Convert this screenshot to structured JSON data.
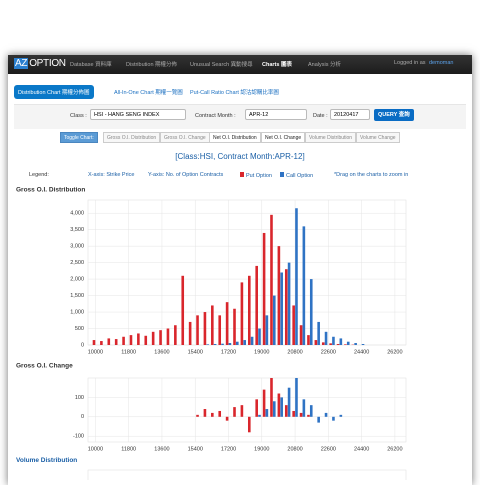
{
  "nav": {
    "brand_prefix": "AZ",
    "brand": "OPTION",
    "items": [
      "Database 資料庫",
      "Distribution 期權分佈",
      "Unusual Search 異動搜尋",
      "Charts 圖表",
      "Analysis 分析"
    ],
    "login": "Logged in as",
    "user": "demoman"
  },
  "tabs": [
    "Distribution Chart 期權分佈圖",
    "All-In-One Chart 期權一覽圖",
    "Put-Call Ratio Chart 認沽認購比率圖"
  ],
  "form": {
    "class_label": "Class :",
    "class_value": "HSI - HANG SENG INDEX",
    "month_label": "Contract Month :",
    "month_value": "APR-12",
    "date_label": "Date :",
    "date_value": "20120417",
    "query": "QUERY 查詢"
  },
  "toggle": {
    "label": "Toggle Chart:",
    "buttons": [
      "Gross O.I. Distribution",
      "Gross O.I. Change",
      "Net O.I. Distribution",
      "Net O.I. Change",
      "Volume Distribution",
      "Volume Change"
    ]
  },
  "heading": "[Class:HSI, Contract Month:APR-12]",
  "legend": {
    "title": "Legend:",
    "x_axis": "X-axis: Strike Price",
    "y_axis": "Y-axis: No. of Option Contracts",
    "note": "*Drag on the charts to zoom in"
  },
  "volume_title": "Volume Distribution",
  "chart_data": [
    {
      "type": "bar",
      "title": "Gross O.I. Distribution",
      "x": [
        10000,
        10400,
        10800,
        11200,
        11600,
        12000,
        12400,
        12800,
        13200,
        13600,
        14000,
        14400,
        14800,
        15200,
        15600,
        16000,
        16400,
        16800,
        17200,
        17600,
        18000,
        18400,
        18800,
        19200,
        19600,
        20000,
        20400,
        20800,
        21200,
        21600,
        22000,
        22400,
        22800,
        23200,
        23600,
        24000,
        24400
      ],
      "series": [
        {
          "name": "Put Option",
          "color": "#d9262c",
          "values": [
            150,
            120,
            200,
            180,
            250,
            300,
            350,
            280,
            400,
            450,
            500,
            600,
            2100,
            700,
            900,
            1000,
            1200,
            900,
            1300,
            1100,
            1900,
            2100,
            2400,
            3400,
            3950,
            3000,
            2300,
            1200,
            600,
            300,
            150,
            80,
            50,
            30,
            20,
            10,
            null
          ]
        },
        {
          "name": "Call Option",
          "color": "#2f73c4",
          "values": [
            null,
            null,
            null,
            null,
            null,
            null,
            null,
            null,
            null,
            null,
            null,
            null,
            null,
            null,
            null,
            20,
            30,
            40,
            60,
            100,
            150,
            250,
            500,
            900,
            1500,
            2200,
            2500,
            4150,
            3600,
            2000,
            700,
            400,
            250,
            200,
            100,
            60,
            30
          ]
        }
      ],
      "xlim": [
        9600,
        26800
      ],
      "xticks": [
        10000,
        11800,
        13600,
        15400,
        17200,
        19000,
        20800,
        22600,
        24400,
        26200
      ],
      "ylim": [
        0,
        4400
      ],
      "yticks": [
        0,
        500,
        {
          "value": 1000,
          "label": "1,000"
        },
        {
          "value": 1500,
          "label": "1,500"
        },
        {
          "value": 2000,
          "label": "2,000"
        },
        {
          "value": 2500,
          "label": "2,500"
        },
        {
          "value": 3000,
          "label": "3,000"
        },
        {
          "value": 3500,
          "label": "3,500"
        },
        {
          "value": 4000,
          "label": "4,000"
        }
      ],
      "grid": true
    },
    {
      "type": "bar",
      "title": "Gross O.I. Change",
      "x": [
        10000,
        10400,
        10800,
        11200,
        11600,
        12000,
        12400,
        12800,
        13200,
        13600,
        14000,
        14400,
        14800,
        15200,
        15600,
        16000,
        16400,
        16800,
        17200,
        17600,
        18000,
        18400,
        18800,
        19200,
        19600,
        20000,
        20400,
        20800,
        21200,
        21600,
        22000,
        22400,
        22800,
        23200,
        23600,
        24000,
        24400
      ],
      "series": [
        {
          "name": "Put Option",
          "color": "#d9262c",
          "values": [
            null,
            null,
            null,
            null,
            null,
            null,
            null,
            null,
            null,
            null,
            null,
            null,
            null,
            null,
            10,
            40,
            20,
            30,
            -20,
            50,
            60,
            -80,
            90,
            140,
            200,
            120,
            60,
            30,
            20,
            10,
            null,
            null,
            null,
            null,
            null,
            null,
            null
          ]
        },
        {
          "name": "Call Option",
          "color": "#2f73c4",
          "values": [
            null,
            null,
            null,
            null,
            null,
            null,
            null,
            null,
            null,
            null,
            null,
            null,
            null,
            null,
            null,
            null,
            null,
            null,
            null,
            null,
            null,
            null,
            10,
            40,
            80,
            100,
            150,
            200,
            90,
            60,
            -30,
            20,
            -20,
            10,
            null,
            null,
            null
          ]
        }
      ],
      "xlim": [
        9600,
        26800
      ],
      "xticks": [
        10000,
        11800,
        13600,
        15400,
        17200,
        19000,
        20800,
        22600,
        24400,
        26200
      ],
      "ylim": [
        -130,
        200
      ],
      "yticks": [
        -100,
        0,
        100
      ],
      "grid": true
    }
  ]
}
